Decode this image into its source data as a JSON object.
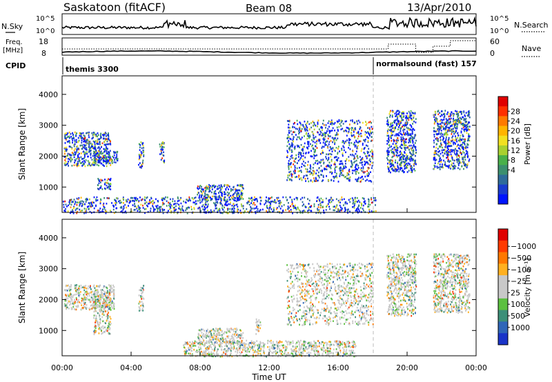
{
  "header": {
    "station": "Saskatoon (fitACF)",
    "beam": "Beam 08",
    "date": "13/Apr/2010"
  },
  "panels": {
    "nsky": {
      "left_label": "N.Sky",
      "right_label": "N.Search",
      "left_ticks": [
        "10^5",
        "10^0"
      ],
      "right_ticks": [
        "10^5",
        "10^0"
      ]
    },
    "freq": {
      "left_label_1": "Freq.",
      "left_label_2": "[MHz]",
      "right_label": "Nave",
      "left_ticks": [
        "18",
        "8"
      ],
      "right_ticks": [
        "60",
        "0"
      ]
    },
    "cpid": {
      "label": "CPID",
      "programs": [
        "themis 3300",
        "normalsound (fast) 157"
      ]
    }
  },
  "chart_data": [
    {
      "type": "heatmap",
      "name": "power",
      "ylabel": "Slant Range [km]",
      "yticks": [
        "1000",
        "2000",
        "3000",
        "4000"
      ],
      "ylim": [
        180,
        4600
      ],
      "xlim": [
        0,
        24
      ],
      "colorbar": {
        "label": "Power [dB]",
        "ticks": [
          "4",
          "8",
          "12",
          "16",
          "20",
          "24",
          "28"
        ],
        "colors": [
          "#0014ff",
          "#1a3ccf",
          "#2e6b9a",
          "#3b8f6e",
          "#49b04a",
          "#a8d030",
          "#f2e020",
          "#ffb400",
          "#ff7a00",
          "#ff3000",
          "#e00000"
        ]
      },
      "scatter_regions": [
        {
          "x": [
            0.1,
            2.8
          ],
          "y": [
            1700,
            2800
          ]
        },
        {
          "x": [
            1.8,
            3.2
          ],
          "y": [
            1800,
            2200
          ]
        },
        {
          "x": [
            2.0,
            2.8
          ],
          "y": [
            950,
            1300
          ]
        },
        {
          "x": [
            4.4,
            4.7
          ],
          "y": [
            1650,
            2500
          ]
        },
        {
          "x": [
            5.6,
            5.9
          ],
          "y": [
            1800,
            2500
          ]
        },
        {
          "x": [
            7.8,
            10.5
          ],
          "y": [
            600,
            1100
          ]
        },
        {
          "x": [
            0.0,
            18.2
          ],
          "y": [
            180,
            700
          ]
        },
        {
          "x": [
            13.0,
            18.0
          ],
          "y": [
            1200,
            3200
          ]
        },
        {
          "x": [
            18.8,
            20.5
          ],
          "y": [
            1500,
            3500
          ]
        },
        {
          "x": [
            21.5,
            23.6
          ],
          "y": [
            1600,
            3500
          ]
        }
      ]
    },
    {
      "type": "heatmap",
      "name": "velocity",
      "ylabel": "Slant Range [km]",
      "yticks": [
        "1000",
        "2000",
        "3000",
        "4000"
      ],
      "ylim": [
        180,
        4600
      ],
      "xlim": [
        0,
        24
      ],
      "xlabel": "Time UT",
      "xticks": [
        "00:00",
        "04:00",
        "08:00",
        "12:00",
        "16:00",
        "20:00",
        "00:00"
      ],
      "colorbar": {
        "label": "Velocity [m s⁻¹]",
        "ticks": [
          "1000",
          "500",
          "100",
          "25",
          "−25",
          "−100",
          "−500",
          "−1000"
        ],
        "colors": [
          "#1a34c8",
          "#2f66b8",
          "#3c8f78",
          "#5cc040",
          "#c8c8c8",
          "#c8c8c8",
          "#ffb020",
          "#ff7800",
          "#ff3a00",
          "#e00000"
        ]
      },
      "scatter_regions": [
        {
          "x": [
            0.1,
            3.0
          ],
          "y": [
            1700,
            2500
          ]
        },
        {
          "x": [
            1.8,
            2.8
          ],
          "y": [
            900,
            2300
          ]
        },
        {
          "x": [
            4.4,
            4.7
          ],
          "y": [
            1650,
            2500
          ]
        },
        {
          "x": [
            7.8,
            10.5
          ],
          "y": [
            600,
            1100
          ]
        },
        {
          "x": [
            7.0,
            17.0
          ],
          "y": [
            180,
            700
          ]
        },
        {
          "x": [
            11.2,
            11.5
          ],
          "y": [
            900,
            1400
          ]
        },
        {
          "x": [
            13.0,
            18.0
          ],
          "y": [
            1200,
            3200
          ]
        },
        {
          "x": [
            18.8,
            20.5
          ],
          "y": [
            1500,
            3500
          ]
        },
        {
          "x": [
            21.5,
            23.6
          ],
          "y": [
            1600,
            3500
          ]
        }
      ]
    }
  ]
}
